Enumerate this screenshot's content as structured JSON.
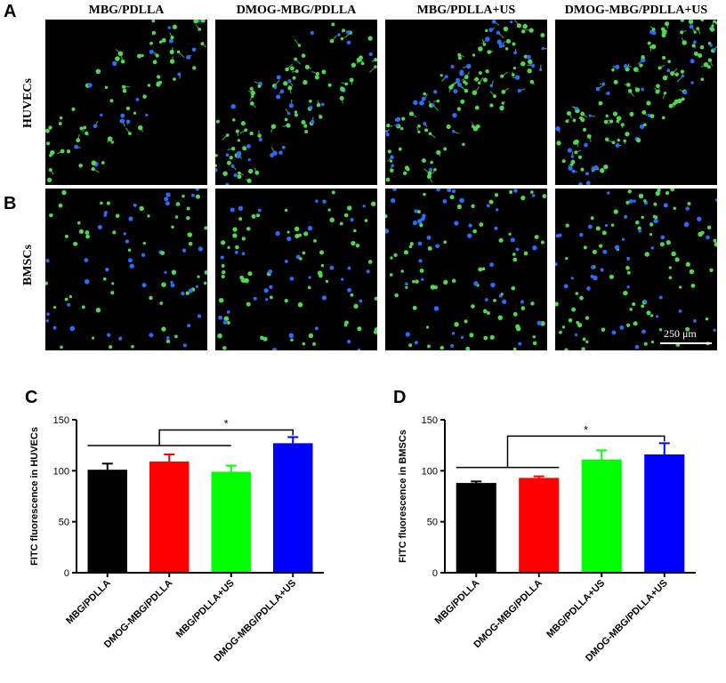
{
  "figure": {
    "panels": {
      "a": "A",
      "b": "B",
      "c": "C",
      "d": "D"
    },
    "column_headers": [
      "MBG/PDLLA",
      "DMOG-MBG/PDLLA",
      "MBG/PDLLA+US",
      "DMOG-MBG/PDLLA+US"
    ],
    "row_labels": [
      "HUVECs",
      "BMSCs"
    ],
    "scale_bar": "250 μm"
  },
  "colors": {
    "bars": [
      "#000000",
      "#ff0000",
      "#00ff00",
      "#0000ff"
    ],
    "cell_green": "#4fd94f",
    "cell_blue": "#2a6cff",
    "background": "#000000"
  },
  "chart_data": [
    {
      "type": "bar",
      "panel": "C",
      "ylabel": "FITC fluorescence in HUVECs",
      "categories": [
        "MBG/PDLLA",
        "DMOG-MBG/PDLLA",
        "MBG/PDLLA+US",
        "DMOG-MBG/PDLLA+US"
      ],
      "values": [
        101,
        109,
        99,
        127
      ],
      "errors": [
        6,
        7,
        6,
        6
      ],
      "ylim": [
        0,
        150
      ],
      "yticks": [
        0,
        50,
        100,
        150
      ],
      "significance": "*",
      "grid": false
    },
    {
      "type": "bar",
      "panel": "D",
      "ylabel": "FITC fluorescence in BMSCs",
      "categories": [
        "MBG/PDLLA",
        "DMOG-MBG/PDLLA",
        "MBG/PDLLA+US",
        "DMOG-MBG/PDLLA+US"
      ],
      "values": [
        88,
        93,
        111,
        116
      ],
      "errors": [
        1.5,
        1.5,
        9,
        11
      ],
      "ylim": [
        0,
        150
      ],
      "yticks": [
        0,
        50,
        100,
        150
      ],
      "significance": "*",
      "grid": false
    }
  ]
}
